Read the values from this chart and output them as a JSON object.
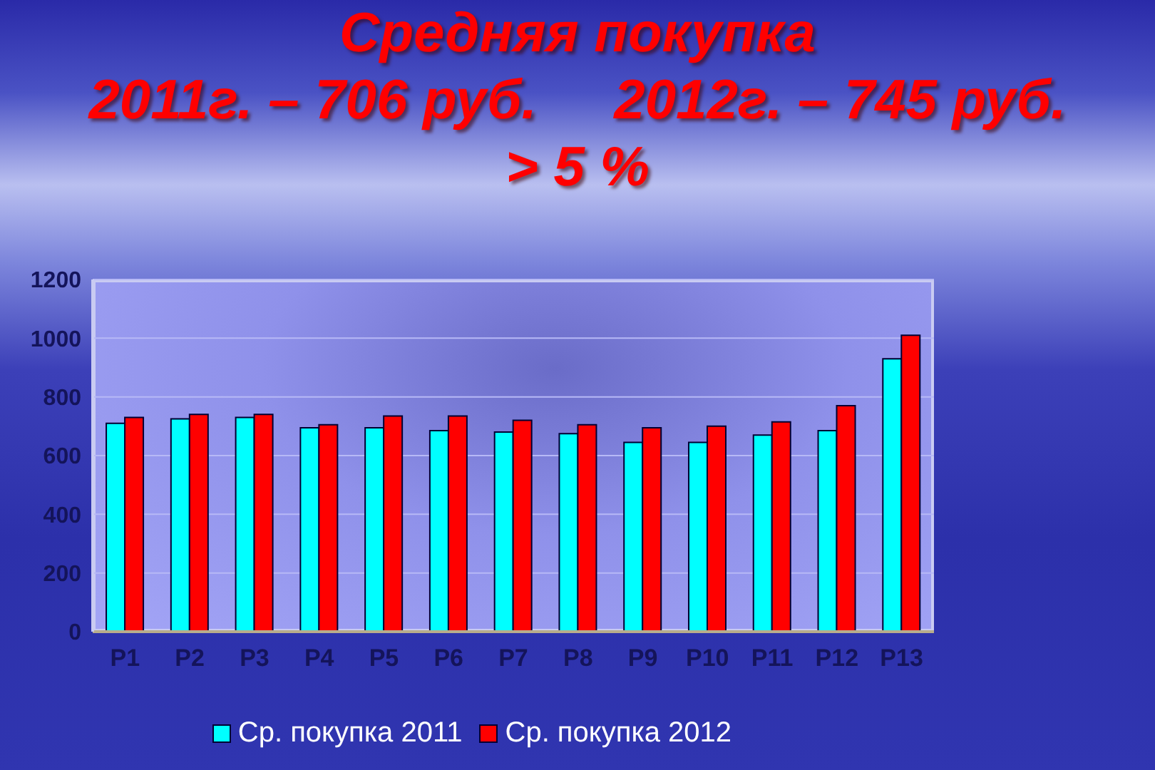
{
  "chart_data": {
    "type": "bar",
    "title": "Средняя покупка\n2011г. – 706 руб.     2012г. – 745 руб.\n> 5 %",
    "categories": [
      "P1",
      "P2",
      "P3",
      "P4",
      "P5",
      "P6",
      "P7",
      "P8",
      "P9",
      "P10",
      "P11",
      "P12",
      "P13"
    ],
    "series": [
      {
        "name": "Ср. покупка 2011",
        "color": "#00ffff",
        "values": [
          710,
          725,
          730,
          695,
          695,
          685,
          680,
          675,
          645,
          645,
          670,
          685,
          930
        ]
      },
      {
        "name": "Ср. покупка 2012",
        "color": "#ff0000",
        "values": [
          730,
          740,
          740,
          705,
          735,
          735,
          720,
          705,
          695,
          700,
          715,
          770,
          1010
        ]
      }
    ],
    "ylim": [
      0,
      1200
    ],
    "yticks": [
      0,
      200,
      400,
      600,
      800,
      1000,
      1200
    ],
    "grid": "y",
    "legend": "bottom"
  }
}
